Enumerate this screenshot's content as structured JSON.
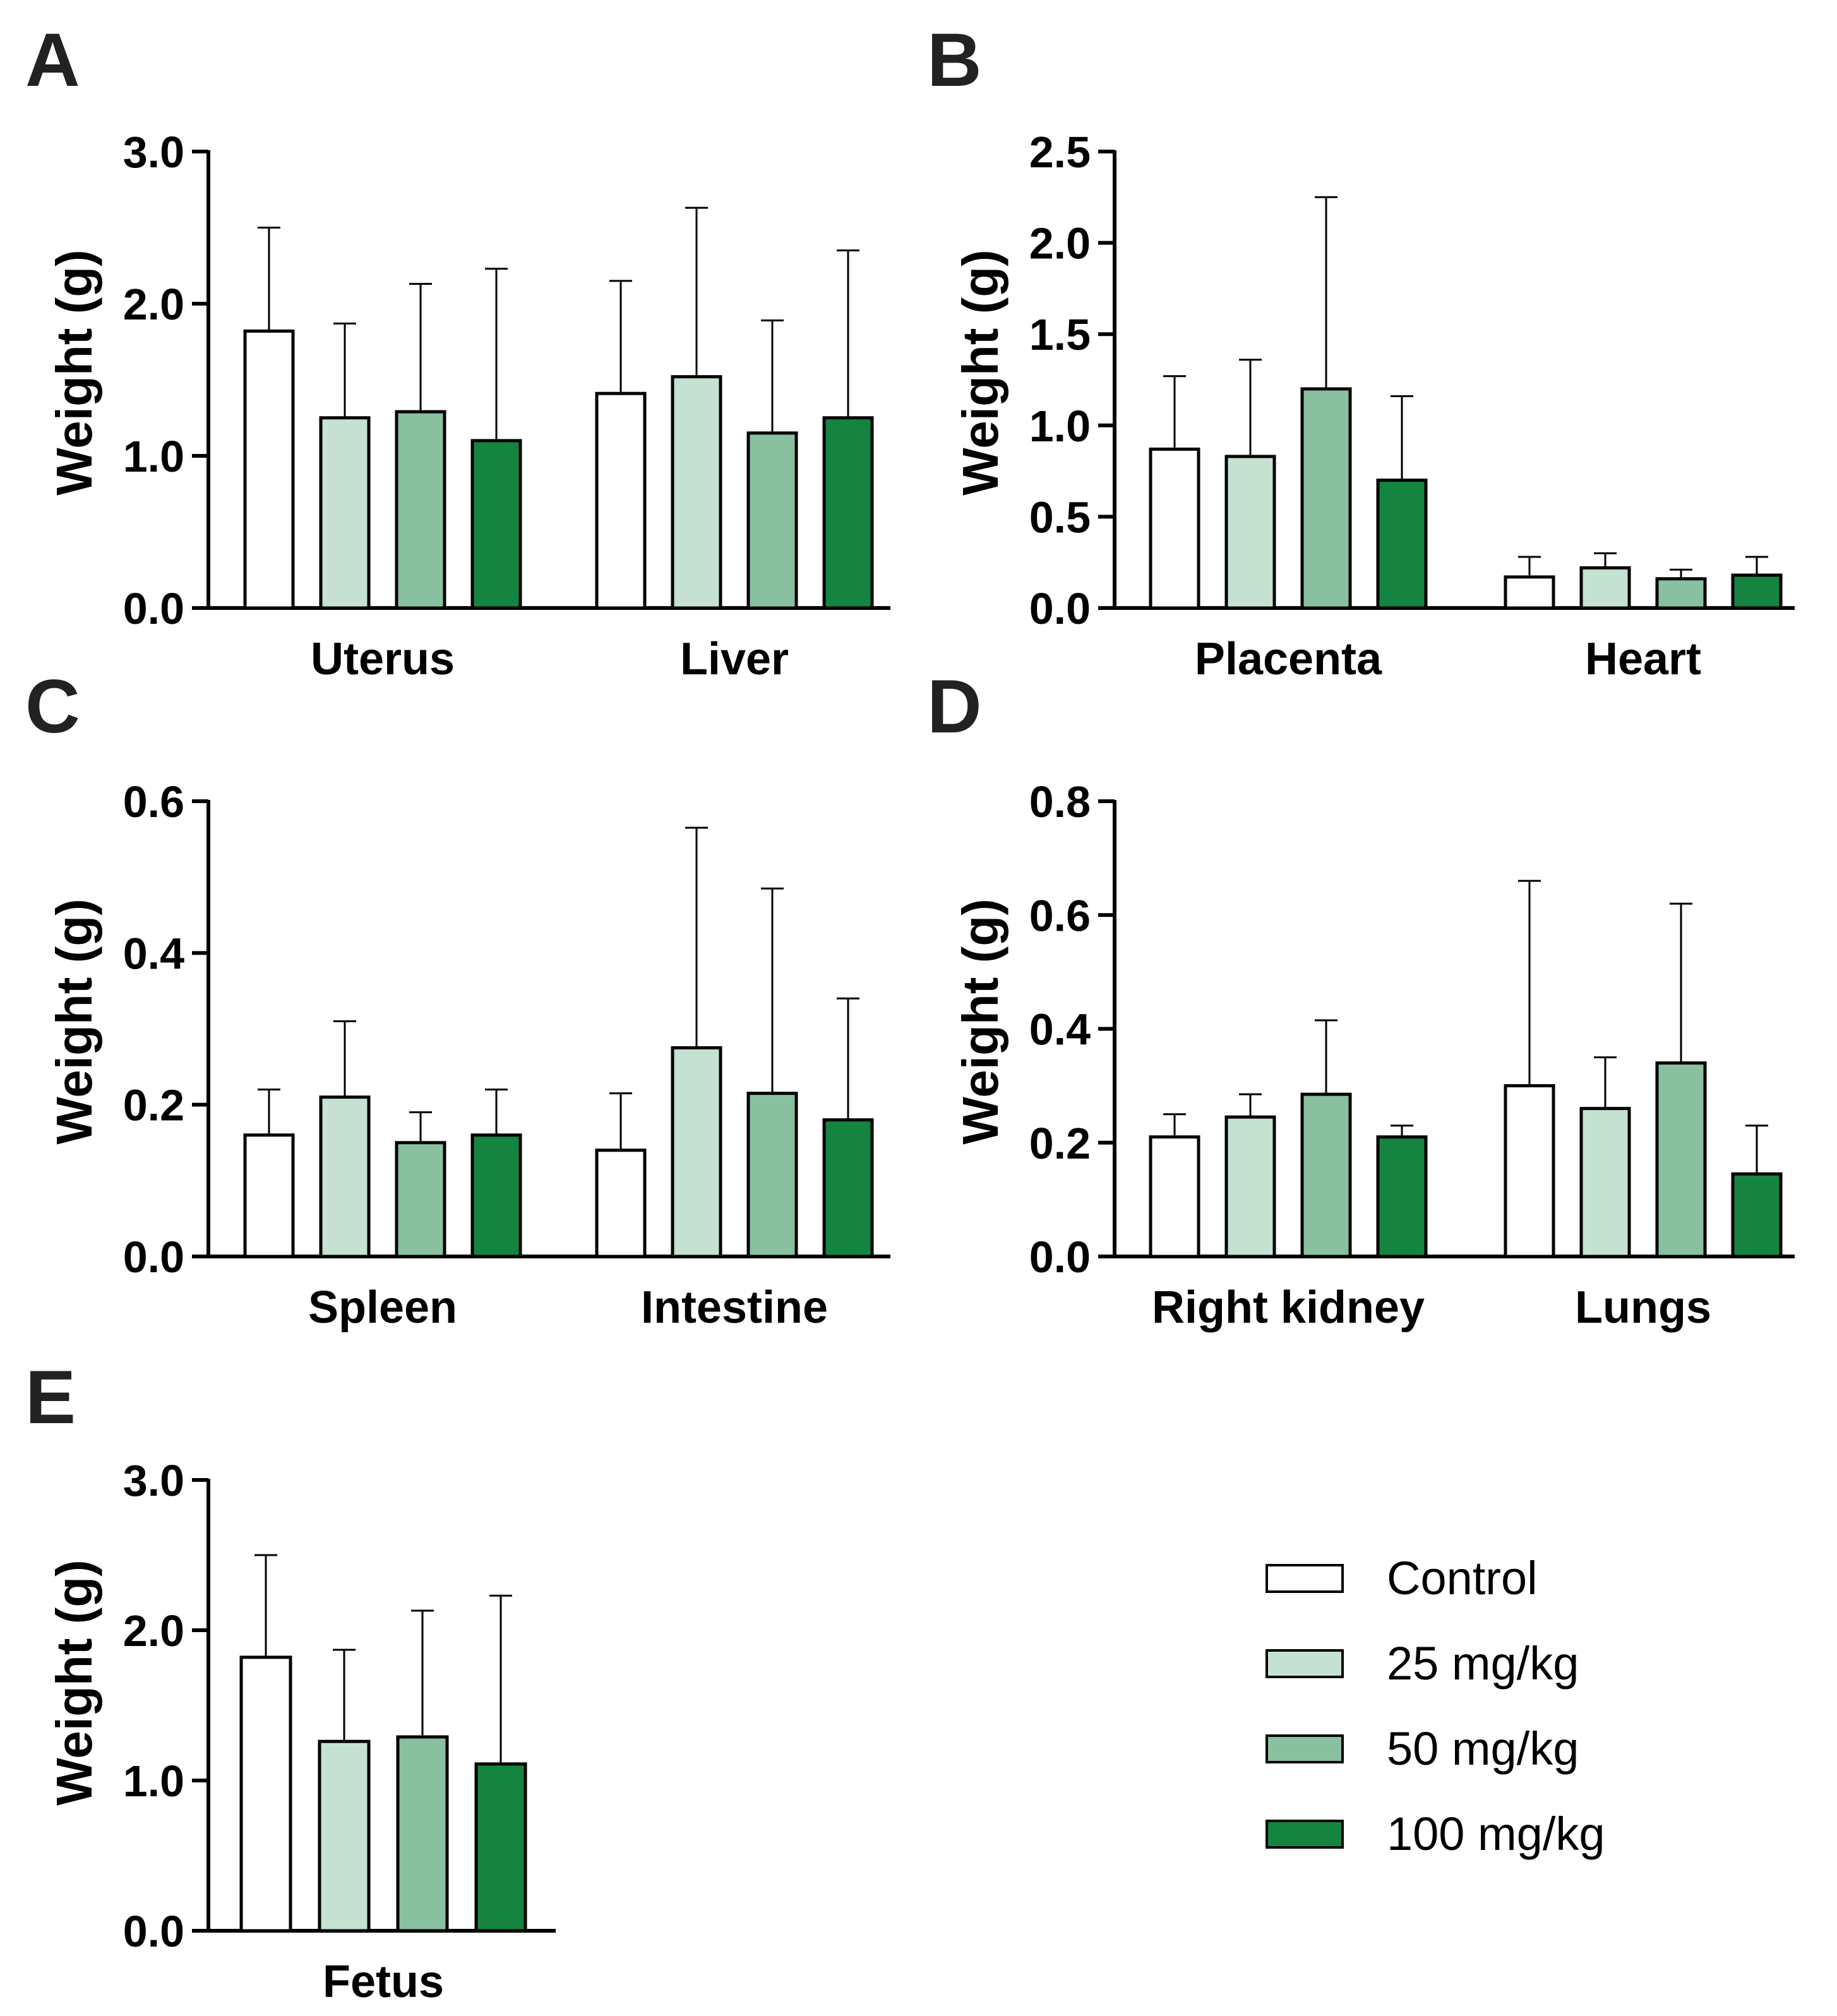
{
  "legend": {
    "items": [
      {
        "label": "Control",
        "color": "#ffffff"
      },
      {
        "label": "25 mg/kg",
        "color": "#c5e1d2"
      },
      {
        "label": "50 mg/kg",
        "color": "#89c0a0"
      },
      {
        "label": "100 mg/kg",
        "color": "#158441"
      }
    ]
  },
  "chart_data": [
    {
      "panel": "A",
      "type": "bar",
      "ylabel": "Weight (g)",
      "ylim": [
        0,
        3.0
      ],
      "yticks": [
        "0.0",
        "1.0",
        "2.0",
        "3.0"
      ],
      "categories": [
        "Uterus",
        "Liver"
      ],
      "series": [
        {
          "name": "Control",
          "values": [
            1.82,
            1.41
          ],
          "errors": [
            0.68,
            0.74
          ]
        },
        {
          "name": "25 mg/kg",
          "values": [
            1.25,
            1.52
          ],
          "errors": [
            0.62,
            1.11
          ]
        },
        {
          "name": "50 mg/kg",
          "values": [
            1.29,
            1.15
          ],
          "errors": [
            0.84,
            0.74
          ]
        },
        {
          "name": "100 mg/kg",
          "values": [
            1.1,
            1.25
          ],
          "errors": [
            1.13,
            1.1
          ]
        }
      ]
    },
    {
      "panel": "B",
      "type": "bar",
      "ylabel": "Weight (g)",
      "ylim": [
        0,
        2.5
      ],
      "yticks": [
        "0.0",
        "0.5",
        "1.0",
        "1.5",
        "2.0",
        "2.5"
      ],
      "categories": [
        "Placenta",
        "Heart"
      ],
      "series": [
        {
          "name": "Control",
          "values": [
            0.87,
            0.17
          ],
          "errors": [
            0.4,
            0.11
          ]
        },
        {
          "name": "25 mg/kg",
          "values": [
            0.83,
            0.22
          ],
          "errors": [
            0.53,
            0.08
          ]
        },
        {
          "name": "50 mg/kg",
          "values": [
            1.2,
            0.16
          ],
          "errors": [
            1.05,
            0.05
          ]
        },
        {
          "name": "100 mg/kg",
          "values": [
            0.7,
            0.18
          ],
          "errors": [
            0.46,
            0.1
          ]
        }
      ]
    },
    {
      "panel": "C",
      "type": "bar",
      "ylabel": "Weight (g)",
      "ylim": [
        0,
        0.6
      ],
      "yticks": [
        "0.0",
        "0.2",
        "0.4",
        "0.6"
      ],
      "categories": [
        "Spleen",
        "Intestine"
      ],
      "series": [
        {
          "name": "Control",
          "values": [
            0.16,
            0.14
          ],
          "errors": [
            0.06,
            0.075
          ]
        },
        {
          "name": "25 mg/kg",
          "values": [
            0.21,
            0.275
          ],
          "errors": [
            0.1,
            0.29
          ]
        },
        {
          "name": "50 mg/kg",
          "values": [
            0.15,
            0.215
          ],
          "errors": [
            0.04,
            0.27
          ]
        },
        {
          "name": "100 mg/kg",
          "values": [
            0.16,
            0.18
          ],
          "errors": [
            0.06,
            0.16
          ]
        }
      ]
    },
    {
      "panel": "D",
      "type": "bar",
      "ylabel": "Weight (g)",
      "ylim": [
        0,
        0.8
      ],
      "yticks": [
        "0.0",
        "0.2",
        "0.4",
        "0.6",
        "0.8"
      ],
      "categories": [
        "Right kidney",
        "Lungs"
      ],
      "series": [
        {
          "name": "Control",
          "values": [
            0.21,
            0.3
          ],
          "errors": [
            0.04,
            0.36
          ]
        },
        {
          "name": "25 mg/kg",
          "values": [
            0.245,
            0.26
          ],
          "errors": [
            0.04,
            0.09
          ]
        },
        {
          "name": "50 mg/kg",
          "values": [
            0.285,
            0.34
          ],
          "errors": [
            0.13,
            0.28
          ]
        },
        {
          "name": "100 mg/kg",
          "values": [
            0.21,
            0.145
          ],
          "errors": [
            0.02,
            0.085
          ]
        }
      ]
    },
    {
      "panel": "E",
      "type": "bar",
      "ylabel": "Weight (g)",
      "ylim": [
        0,
        3.0
      ],
      "yticks": [
        "0.0",
        "1.0",
        "2.0",
        "3.0"
      ],
      "categories": [
        "Fetus"
      ],
      "series": [
        {
          "name": "Control",
          "values": [
            1.82
          ],
          "errors": [
            0.68
          ]
        },
        {
          "name": "25 mg/kg",
          "values": [
            1.26
          ],
          "errors": [
            0.61
          ]
        },
        {
          "name": "50 mg/kg",
          "values": [
            1.29
          ],
          "errors": [
            0.84
          ]
        },
        {
          "name": "100 mg/kg",
          "values": [
            1.11
          ],
          "errors": [
            1.12
          ]
        }
      ]
    }
  ]
}
